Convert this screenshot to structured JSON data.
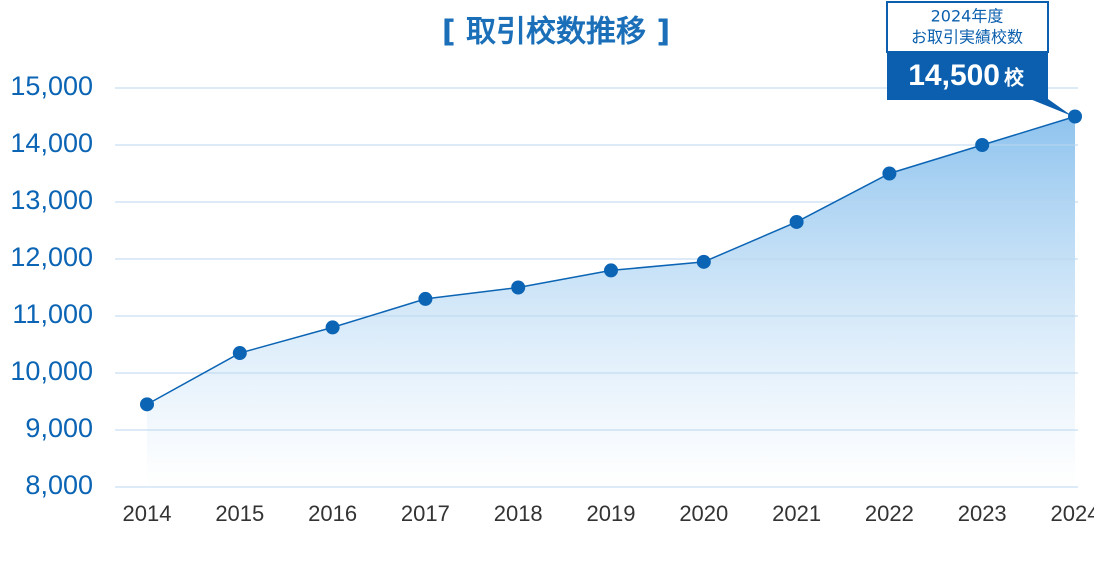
{
  "chart_data": {
    "type": "line",
    "title": "[ 取引校数推移 ]",
    "categories": [
      "2014",
      "2015",
      "2016",
      "2017",
      "2018",
      "2019",
      "2020",
      "2021",
      "2022",
      "2023",
      "2024"
    ],
    "values": [
      9450,
      10350,
      10800,
      11300,
      11500,
      11800,
      11950,
      12650,
      13500,
      14000,
      14500
    ],
    "color": "#0b64b4",
    "ylim": [
      8000,
      15000
    ],
    "yticks": [
      {
        "value": 8000,
        "label": "8,000"
      },
      {
        "value": 9000,
        "label": "9,000"
      },
      {
        "value": 10000,
        "label": "10,000"
      },
      {
        "value": 11000,
        "label": "11,000"
      },
      {
        "value": 12000,
        "label": "12,000"
      },
      {
        "value": 13000,
        "label": "13,000"
      },
      {
        "value": 14000,
        "label": "14,000"
      },
      {
        "value": 15000,
        "label": "15,000"
      }
    ],
    "grid": true,
    "annotation": {
      "heading_1": "2024年度",
      "heading_2": "お取引実績校数",
      "value_label": "14,500",
      "unit": "校"
    }
  }
}
